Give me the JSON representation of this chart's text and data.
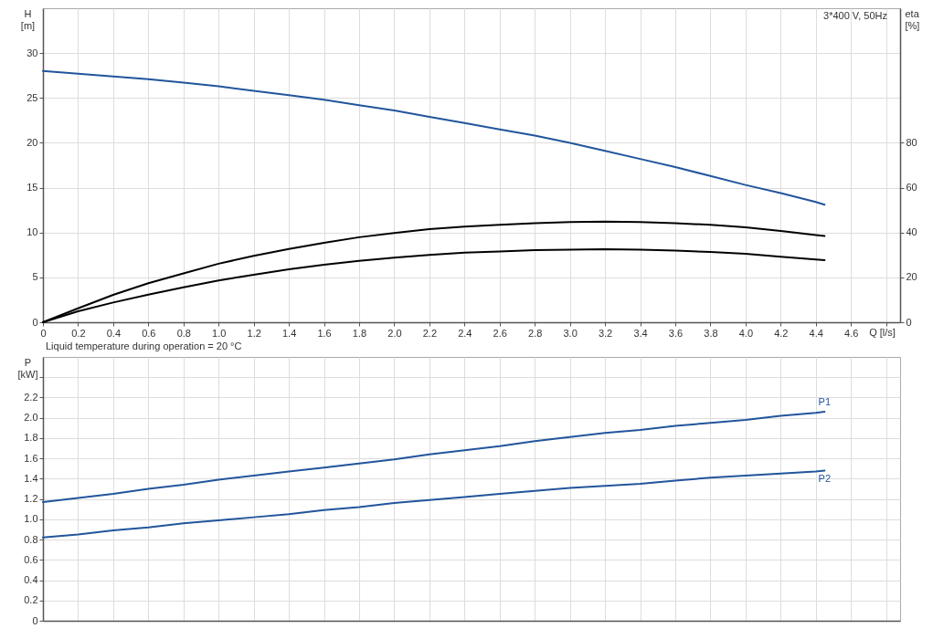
{
  "chart_data": [
    {
      "type": "line",
      "title": "3*400 V, 50Hz",
      "xlabel": "Q [l/s]",
      "ylabel": "H [m]",
      "y2label": "eta [%]",
      "annotations": [
        "Liquid temperature during operation = 20 °C"
      ],
      "xlim": [
        0,
        4.88
      ],
      "xticks": [
        0,
        0.2,
        0.4,
        0.6,
        0.8,
        {
          "value": 1,
          "label": "1.0"
        },
        1.2,
        1.4,
        1.6,
        1.8,
        {
          "value": 2,
          "label": "2.0"
        },
        2.2,
        2.4,
        2.6,
        2.8,
        {
          "value": 3,
          "label": "3.0"
        },
        3.2,
        3.4,
        3.6,
        3.8,
        {
          "value": 4,
          "label": "4.0"
        },
        4.2,
        4.4,
        4.6,
        {
          "value": 4.8,
          "label": null
        }
      ],
      "ylim": [
        0,
        35
      ],
      "yticks": [
        0,
        5,
        10,
        15,
        20,
        25,
        30
      ],
      "y2lim": [
        0,
        140
      ],
      "y2ticks": [
        0,
        20,
        40,
        60,
        80
      ],
      "grid": true,
      "x": [
        0,
        0.2,
        0.4,
        0.6,
        0.8,
        1.0,
        1.2,
        1.4,
        1.6,
        1.8,
        2.0,
        2.2,
        2.4,
        2.6,
        2.8,
        3.0,
        3.2,
        3.4,
        3.6,
        3.8,
        4.0,
        4.2,
        4.4,
        4.45
      ],
      "series": [
        {
          "color": "#22559c",
          "values": [
            28.0,
            27.7,
            27.4,
            27.1,
            26.7,
            26.3,
            25.8,
            25.3,
            24.8,
            24.2,
            23.6,
            22.9,
            22.2,
            21.5,
            20.8,
            20.0,
            19.1,
            18.2,
            17.3,
            16.3,
            15.3,
            14.4,
            13.4,
            13.1
          ]
        },
        {
          "color": "#000000",
          "axis": "y2",
          "values": [
            0,
            6.2,
            12.2,
            17.4,
            21.8,
            26.1,
            29.6,
            32.7,
            35.4,
            37.9,
            39.8,
            41.5,
            42.6,
            43.4,
            44.2,
            44.7,
            44.9,
            44.7,
            44.2,
            43.4,
            42.3,
            40.7,
            38.9,
            38.5
          ]
        },
        {
          "color": "#000000",
          "axis": "y2",
          "values": [
            0,
            4.9,
            8.8,
            12.3,
            15.6,
            18.6,
            21.2,
            23.6,
            25.6,
            27.4,
            28.8,
            30.0,
            31.0,
            31.5,
            32.2,
            32.4,
            32.6,
            32.4,
            31.9,
            31.3,
            30.5,
            29.2,
            28.0,
            27.7
          ]
        }
      ]
    },
    {
      "type": "line",
      "ylabel": "P [kW]",
      "tick_labels": "y",
      "xlim": [
        0,
        4.88
      ],
      "xticks": [
        0,
        0.2,
        0.4,
        0.6,
        0.8,
        1,
        1.2,
        1.4,
        1.6,
        1.8,
        2,
        2.2,
        2.4,
        2.6,
        2.8,
        3,
        3.2,
        3.4,
        3.6,
        3.8,
        4,
        4.2,
        4.4,
        4.6,
        4.8
      ],
      "ylim": [
        0,
        2.6
      ],
      "yticks": [
        0,
        0.2,
        0.4,
        0.6,
        0.8,
        {
          "value": 1,
          "label": "1.0"
        },
        1.2,
        1.4,
        1.6,
        1.8,
        {
          "value": 2,
          "label": "2.0"
        },
        2.2,
        {
          "value": 2.4,
          "label": null
        }
      ],
      "grid": true,
      "x": [
        0,
        0.2,
        0.4,
        0.6,
        0.8,
        1.0,
        1.2,
        1.4,
        1.6,
        1.8,
        2.0,
        2.2,
        2.4,
        2.6,
        2.8,
        3.0,
        3.2,
        3.4,
        3.6,
        3.8,
        4.0,
        4.2,
        4.4,
        4.45
      ],
      "series": [
        {
          "name": "P1",
          "color": "#22559c",
          "values": [
            1.17,
            1.21,
            1.25,
            1.3,
            1.34,
            1.39,
            1.43,
            1.47,
            1.51,
            1.55,
            1.59,
            1.64,
            1.68,
            1.72,
            1.77,
            1.81,
            1.85,
            1.88,
            1.92,
            1.95,
            1.98,
            2.02,
            2.05,
            2.06
          ]
        },
        {
          "name": "P2",
          "color": "#22559c",
          "values": [
            0.82,
            0.85,
            0.89,
            0.92,
            0.96,
            0.99,
            1.02,
            1.05,
            1.09,
            1.12,
            1.16,
            1.19,
            1.22,
            1.25,
            1.28,
            1.31,
            1.33,
            1.35,
            1.38,
            1.41,
            1.43,
            1.45,
            1.47,
            1.48
          ]
        }
      ]
    }
  ]
}
